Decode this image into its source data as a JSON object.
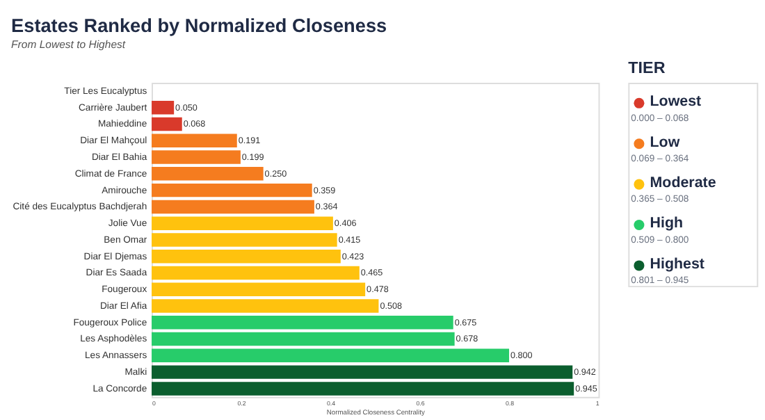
{
  "chart_data": {
    "type": "bar",
    "orientation": "horizontal",
    "title": "Estates Ranked by Normalized Closeness",
    "subtitle": "From Lowest to Highest",
    "categories": [
      "Tier Les Eucalyptus",
      "Carrière Jaubert",
      "Mahieddine",
      "Diar El Mahçoul",
      "Diar El Bahia",
      "Climat de France",
      "Amirouche",
      "Cité des Eucalyptus Bachdjerah",
      "Jolie Vue",
      "Ben Omar",
      "Diar El Djemas",
      "Diar Es Saada",
      "Fougeroux",
      "Diar El Afia",
      "Fougeroux Police",
      "Les Asphodèles",
      "Les Annassers",
      "Malki",
      "La Concorde"
    ],
    "series": [
      {
        "name": "Lowest",
        "color": "#d93a2b",
        "values": [
          null,
          0.05,
          0.068,
          null,
          null,
          null,
          null,
          null,
          null,
          null,
          null,
          null,
          null,
          null,
          null,
          null,
          null,
          null,
          null
        ],
        "value_labels": [
          null,
          "0.050",
          "0.068",
          null,
          null,
          null,
          null,
          null,
          null,
          null,
          null,
          null,
          null,
          null,
          null,
          null,
          null,
          null,
          null
        ]
      },
      {
        "name": "Low",
        "color": "#f57c1f",
        "values": [
          null,
          null,
          null,
          0.191,
          0.199,
          0.25,
          0.359,
          0.364,
          null,
          null,
          null,
          null,
          null,
          null,
          null,
          null,
          null,
          null,
          null
        ],
        "value_labels": [
          null,
          null,
          null,
          "0.191",
          "0.199",
          "0.250",
          "0.359",
          "0.364",
          null,
          null,
          null,
          null,
          null,
          null,
          null,
          null,
          null,
          null,
          null
        ]
      },
      {
        "name": "Moderate",
        "color": "#ffc20e",
        "values": [
          null,
          null,
          null,
          null,
          null,
          null,
          null,
          null,
          0.406,
          0.415,
          0.423,
          0.465,
          0.478,
          0.508,
          null,
          null,
          null,
          null,
          null
        ],
        "value_labels": [
          null,
          null,
          null,
          null,
          null,
          null,
          null,
          null,
          "0.406",
          "0.415",
          "0.423",
          "0.465",
          "0.478",
          "0.508",
          null,
          null,
          null,
          null,
          null
        ]
      },
      {
        "name": "High",
        "color": "#27cc6a",
        "values": [
          null,
          null,
          null,
          null,
          null,
          null,
          null,
          null,
          null,
          null,
          null,
          null,
          null,
          null,
          0.675,
          0.678,
          0.8,
          null,
          null
        ],
        "value_labels": [
          null,
          null,
          null,
          null,
          null,
          null,
          null,
          null,
          null,
          null,
          null,
          null,
          null,
          null,
          "0.675",
          "0.678",
          "0.800",
          null,
          null
        ]
      },
      {
        "name": "Highest",
        "color": "#0b5e2e",
        "values": [
          null,
          null,
          null,
          null,
          null,
          null,
          null,
          null,
          null,
          null,
          null,
          null,
          null,
          null,
          null,
          null,
          null,
          0.942,
          0.945
        ],
        "value_labels": [
          null,
          null,
          null,
          null,
          null,
          null,
          null,
          null,
          null,
          null,
          null,
          null,
          null,
          null,
          null,
          null,
          null,
          "0.942",
          "0.945"
        ]
      }
    ],
    "xlim": [
      0,
      1
    ],
    "xticks": [
      0,
      0.2,
      0.4,
      0.6,
      0.8,
      1
    ],
    "xlabel": "Normalized Closeness Centrality",
    "grid": false,
    "legend": "right",
    "legend_title": "TIER",
    "annotations": [
      "0.000 – 0.068",
      "0.069 – 0.364",
      "0.365 – 0.508",
      "0.509 – 0.800",
      "0.801 – 0.945"
    ]
  }
}
